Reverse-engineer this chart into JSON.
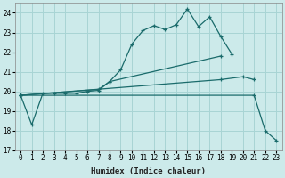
{
  "xlabel": "Humidex (Indice chaleur)",
  "bg_color": "#cceaea",
  "grid_color": "#a8d4d4",
  "line_color": "#1a6b6b",
  "xlim": [
    -0.5,
    23.5
  ],
  "ylim": [
    17,
    24.5
  ],
  "yticks": [
    17,
    18,
    19,
    20,
    21,
    22,
    23,
    24
  ],
  "xticks": [
    0,
    1,
    2,
    3,
    4,
    5,
    6,
    7,
    8,
    9,
    10,
    11,
    12,
    13,
    14,
    15,
    16,
    17,
    18,
    19,
    20,
    21,
    22,
    23
  ],
  "line1_x": [
    0,
    1,
    2,
    3,
    4,
    5,
    6,
    7,
    8,
    9,
    10,
    11,
    12,
    13,
    14,
    15,
    16,
    17,
    18,
    19
  ],
  "line1_y": [
    19.8,
    18.3,
    19.9,
    19.9,
    19.9,
    19.9,
    20.0,
    20.05,
    20.5,
    21.1,
    22.4,
    23.1,
    23.35,
    23.15,
    23.4,
    24.2,
    23.3,
    23.8,
    22.8,
    21.9
  ],
  "line2_x": [
    0,
    7,
    8,
    18
  ],
  "line2_y": [
    19.8,
    20.1,
    20.5,
    21.8
  ],
  "line3_x": [
    0,
    18,
    20,
    21
  ],
  "line3_y": [
    19.8,
    20.6,
    20.75,
    20.6
  ],
  "line4_x": [
    0,
    21,
    22,
    23
  ],
  "line4_y": [
    19.8,
    19.8,
    18.0,
    17.5
  ]
}
